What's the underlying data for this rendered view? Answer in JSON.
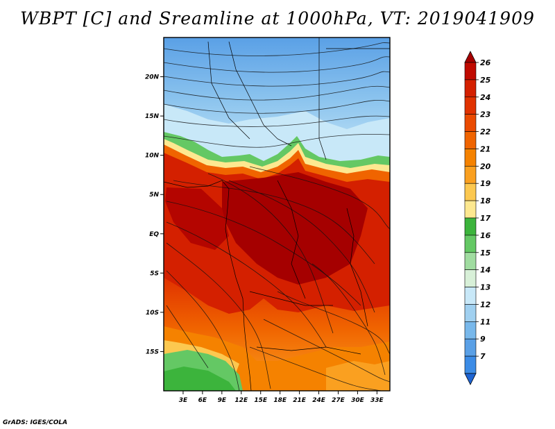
{
  "title": "WBPT [C] and Sreamline at 1000hPa, VT: 2019041909",
  "credit": "GrADS: IGES/COLA",
  "map": {
    "lat_labels": [
      "20N",
      "15N",
      "10N",
      "5N",
      "EQ",
      "5S",
      "10S",
      "15S"
    ],
    "lat_values": [
      20,
      15,
      10,
      5,
      0,
      -5,
      -10,
      -15
    ],
    "lon_labels": [
      "3E",
      "6E",
      "9E",
      "12E",
      "15E",
      "18E",
      "21E",
      "24E",
      "27E",
      "30E",
      "33E"
    ],
    "lon_values": [
      3,
      6,
      9,
      12,
      15,
      18,
      21,
      24,
      27,
      30,
      33
    ],
    "lon_range": [
      0,
      35
    ],
    "lat_range": [
      -20,
      25
    ]
  },
  "colorbar": {
    "labels": [
      "26",
      "25",
      "24",
      "23",
      "22",
      "21",
      "20",
      "19",
      "18",
      "17",
      "16",
      "15",
      "14",
      "13",
      "12",
      "11",
      "9",
      "7"
    ],
    "colors": [
      "#a50000",
      "#c00a00",
      "#d42000",
      "#e03200",
      "#ea4a00",
      "#f06400",
      "#f58200",
      "#faa020",
      "#fcc850",
      "#fde890",
      "#3cb43c",
      "#64c864",
      "#a0dca0",
      "#d8f0d8",
      "#c8e8f8",
      "#a0d0f0",
      "#78b8eb",
      "#5aa0e6",
      "#3c8ce6",
      "#1e64d2"
    ]
  },
  "colors": {
    "background": "#ffffff",
    "frame": "#000000"
  }
}
